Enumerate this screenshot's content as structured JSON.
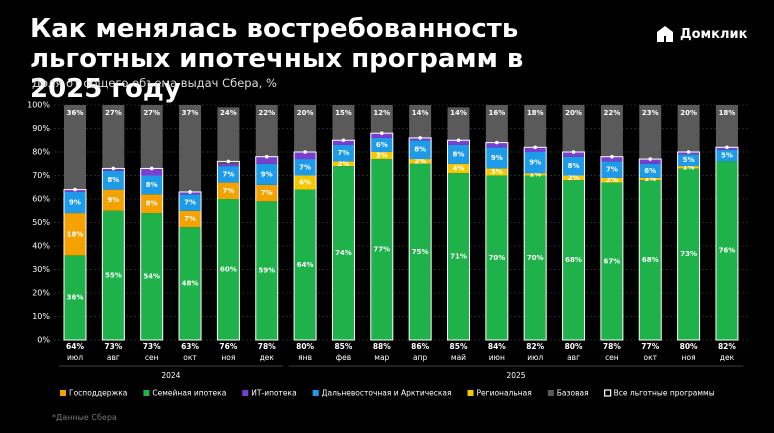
{
  "brand": "Домклик",
  "footnote": "*Данные Сбера",
  "chart_data": {
    "type": "stacked-bar",
    "title": "Как менялась востребованность льготных ипотечных программ в 2025 году",
    "subtitle": "Доля от общего объема выдач Сбера, %",
    "categories": [
      "июл",
      "авг",
      "сен",
      "окт",
      "ноя",
      "дек",
      "янв",
      "фев",
      "мар",
      "апр",
      "май",
      "июн",
      "июл",
      "авг",
      "сен",
      "окт",
      "ноя",
      "дек"
    ],
    "x_groups": [
      {
        "label": "2024",
        "start": 0,
        "end": 5
      },
      {
        "label": "2025",
        "start": 6,
        "end": 17
      }
    ],
    "ylim": [
      0,
      100
    ],
    "yticks": [
      {
        "value": 0,
        "label": "0%"
      },
      {
        "value": 10,
        "label": "10%"
      },
      {
        "value": 20,
        "label": "20%"
      },
      {
        "value": 30,
        "label": "30%"
      },
      {
        "value": 40,
        "label": "40%"
      },
      {
        "value": 50,
        "label": "50%"
      },
      {
        "value": 60,
        "label": "60%"
      },
      {
        "value": 70,
        "label": "70%"
      },
      {
        "value": 80,
        "label": "80%"
      },
      {
        "value": 90,
        "label": "90%"
      },
      {
        "value": 100,
        "label": "100%"
      }
    ],
    "grid": true,
    "series": [
      {
        "name": "Господдержка",
        "color": "#f5a100",
        "values": [
          18,
          9,
          8,
          7,
          7,
          7,
          null,
          null,
          null,
          null,
          null,
          null,
          null,
          null,
          null,
          null,
          null,
          null
        ],
        "value_labels": [
          "18%",
          "9%",
          "8%",
          "7%",
          "7%",
          "7%",
          null,
          null,
          null,
          null,
          null,
          null,
          null,
          null,
          null,
          null,
          null,
          null
        ]
      },
      {
        "name": "Семейная ипотека",
        "color": "#1fb24a",
        "values": [
          36,
          55,
          54,
          48,
          60,
          59,
          64,
          74,
          77,
          75,
          71,
          70,
          70,
          68,
          67,
          68,
          73,
          76
        ],
        "value_labels": [
          "36%",
          "55%",
          "54%",
          "48%",
          "60%",
          "59%",
          "64%",
          "74%",
          "77%",
          "75%",
          "71%",
          "70%",
          "70%",
          "68%",
          "67%",
          "68%",
          "73%",
          "76%"
        ]
      },
      {
        "name": "ИТ-ипотека",
        "color": "#7a3fd1",
        "values": [
          1,
          1,
          3,
          1,
          1,
          3,
          3,
          2,
          2,
          1,
          2,
          2,
          2,
          2,
          2,
          2,
          1,
          1
        ],
        "value_labels": [
          "1%",
          "1%",
          "3%",
          "1%",
          "1%",
          "3%",
          "3%",
          "2%",
          "2%",
          "1%",
          "2%",
          "2%",
          "2%",
          "2%",
          "2%",
          "2%",
          "1%",
          "1%"
        ]
      },
      {
        "name": "Дальневосточная и Арктическая",
        "color": "#1e9be8",
        "values": [
          9,
          8,
          8,
          7,
          7,
          9,
          7,
          7,
          6,
          8,
          8,
          9,
          9,
          8,
          7,
          6,
          5,
          5
        ],
        "value_labels": [
          "9%",
          "8%",
          "8%",
          "7%",
          "7%",
          "9%",
          "7%",
          "7%",
          "6%",
          "8%",
          "8%",
          "9%",
          "9%",
          "8%",
          "7%",
          "6%",
          "5%",
          "5%"
        ]
      },
      {
        "name": "Региональная",
        "color": "#f4c800",
        "values": [
          null,
          null,
          null,
          null,
          null,
          null,
          6,
          2,
          3,
          2,
          4,
          3,
          1,
          2,
          2,
          1,
          1,
          null
        ],
        "value_labels": [
          null,
          null,
          null,
          null,
          null,
          null,
          "6%",
          "2%",
          "3%",
          "2%",
          "4%",
          "3%",
          "1%",
          "2%",
          "2%",
          "1%",
          "1%",
          null
        ]
      },
      {
        "name": "Базовая",
        "color": "#5a5a5a",
        "values": [
          36,
          27,
          27,
          37,
          24,
          22,
          20,
          15,
          12,
          14,
          14,
          16,
          18,
          20,
          22,
          23,
          20,
          18
        ],
        "value_labels": [
          "36%",
          "27%",
          "27%",
          "37%",
          "24%",
          "22%",
          "20%",
          "15%",
          "12%",
          "14%",
          "14%",
          "16%",
          "18%",
          "20%",
          "22%",
          "23%",
          "20%",
          "18%"
        ]
      }
    ],
    "total_series": {
      "name": "Все льготные программы",
      "color": "#ffffff",
      "values": [
        64,
        73,
        73,
        63,
        76,
        78,
        80,
        85,
        88,
        86,
        85,
        84,
        82,
        80,
        78,
        77,
        80,
        82
      ],
      "value_labels": [
        "64%",
        "73%",
        "73%",
        "63%",
        "76%",
        "78%",
        "80%",
        "85%",
        "88%",
        "86%",
        "85%",
        "84%",
        "82%",
        "80%",
        "78%",
        "77%",
        "80%",
        "82%"
      ]
    }
  }
}
